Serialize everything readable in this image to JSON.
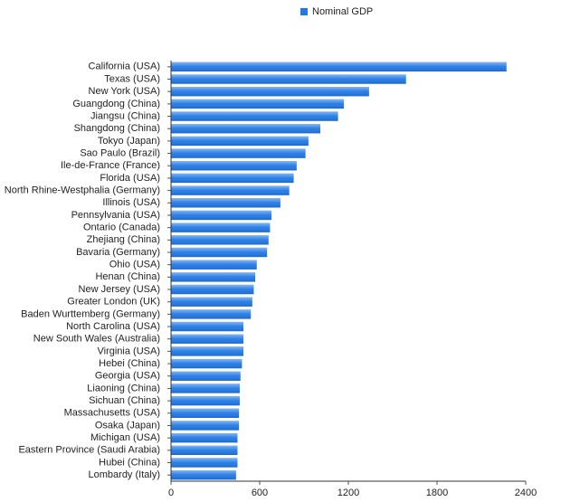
{
  "chart_data": {
    "type": "bar",
    "orientation": "horizontal",
    "categories": [
      "California (USA)",
      "Texas (USA)",
      "New York (USA)",
      "Guangdong (China)",
      "Jiangsu (China)",
      "Shangdong (China)",
      "Tokyo (Japan)",
      "Sao Paulo (Brazil)",
      "Ile-de-France (France)",
      "Florida (USA)",
      "North Rhine-Westphalia (Germany)",
      "Illinois (USA)",
      "Pennsylvania (USA)",
      "Ontario (Canada)",
      "Zhejiang (China)",
      "Bavaria (Germany)",
      "Ohio (USA)",
      "Henan (China)",
      "New Jersey (USA)",
      "Greater London (UK)",
      "Baden Wurttemberg (Germany)",
      "North Carolina (USA)",
      "New South Wales (Australia)",
      "Virginia (USA)",
      "Hebei (China)",
      "Georgia (USA)",
      "Liaoning (China)",
      "Sichuan (China)",
      "Massachusetts (USA)",
      "Osaka (Japan)",
      "Michigan (USA)",
      "Eastern Province (Saudi Arabia)",
      "Hubei (China)",
      "Lombardy (Italy)"
    ],
    "series": [
      {
        "name": "Nominal GDP",
        "color": "#1f78e6",
        "values": [
          2270,
          1590,
          1340,
          1170,
          1130,
          1010,
          930,
          910,
          850,
          830,
          800,
          740,
          680,
          670,
          660,
          650,
          580,
          570,
          560,
          550,
          540,
          490,
          490,
          490,
          480,
          470,
          465,
          465,
          460,
          460,
          450,
          450,
          450,
          440
        ]
      }
    ],
    "xlim": [
      0,
      2400
    ],
    "xticks": [
      0,
      600,
      1200,
      1800,
      2400
    ],
    "legend": "top"
  }
}
